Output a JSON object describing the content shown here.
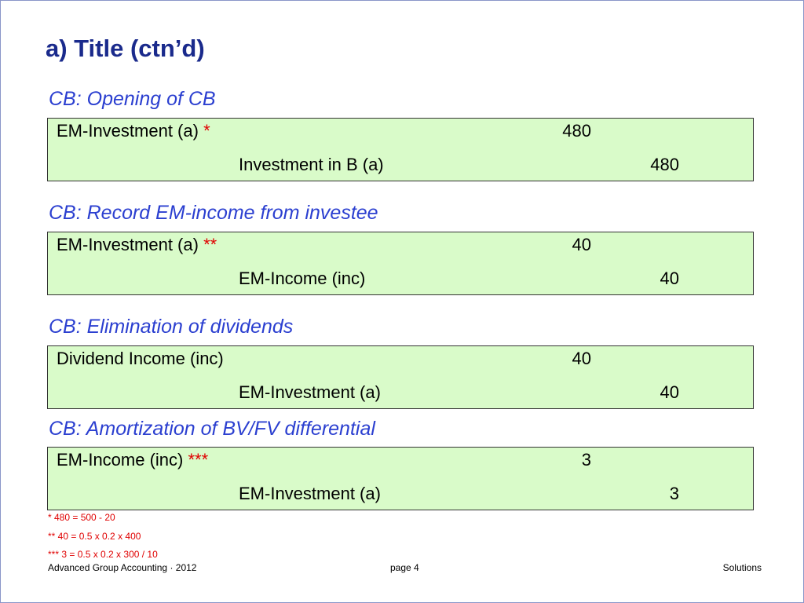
{
  "slide": {
    "title": "a) Title (ctn’d)"
  },
  "entries": [
    {
      "heading": "CB: Opening of CB",
      "debit_account": "EM-Investment (a)",
      "debit_marker": "*",
      "debit_amount": "480",
      "credit_account": "Investment in B (a)",
      "credit_amount": "480"
    },
    {
      "heading": "CB: Record EM-income from investee",
      "debit_account": "EM-Investment (a)",
      "debit_marker": "**",
      "debit_amount": "40",
      "credit_account": "EM-Income (inc)",
      "credit_amount": "40"
    },
    {
      "heading": "CB: Elimination of dividends",
      "debit_account": "Dividend Income (inc)",
      "debit_marker": "",
      "debit_amount": "40",
      "credit_account": "EM-Investment (a)",
      "credit_amount": "40"
    },
    {
      "heading": "CB: Amortization of BV/FV differential",
      "debit_account": "EM-Income (inc)",
      "debit_marker": "***",
      "debit_amount": "3",
      "credit_account": "EM-Investment (a)",
      "credit_amount": "3"
    }
  ],
  "footnotes": [
    "* 480 = 500 - 20",
    "** 40 = 0.5 x 0.2 x 400",
    "*** 3 = 0.5 x 0.2 x 300 / 10"
  ],
  "footer": {
    "left": "Advanced Group Accounting · 2012",
    "center": "page 4",
    "right": "Solutions"
  },
  "colors": {
    "title": "#1a2a8c",
    "heading": "#2b3fd0",
    "box_fill": "#d9fbc9",
    "footnote": "#e00000"
  }
}
